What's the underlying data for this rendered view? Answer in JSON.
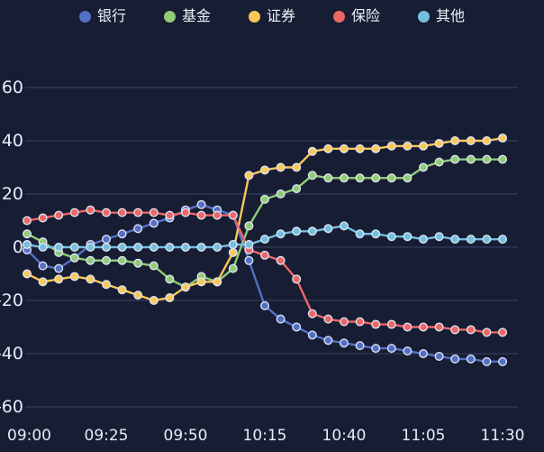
{
  "chart_data": {
    "type": "line",
    "title": "",
    "background": "#171d33",
    "grid": true,
    "grid_color": "#3b4360",
    "axis_text_color": "#e8ecf6",
    "legend_position": "top",
    "marker_stroke": "#dce3f5",
    "ylim": [
      -60,
      60
    ],
    "y_ticks": [
      60,
      40,
      20,
      0,
      -20,
      -40,
      -60
    ],
    "x": [
      "09:00",
      "09:05",
      "09:10",
      "09:15",
      "09:20",
      "09:25",
      "09:30",
      "09:35",
      "09:40",
      "09:45",
      "09:50",
      "09:55",
      "10:00",
      "10:05",
      "10:10",
      "10:15",
      "10:20",
      "10:25",
      "10:30",
      "10:35",
      "10:40",
      "10:45",
      "10:50",
      "10:55",
      "11:00",
      "11:05",
      "11:10",
      "11:15",
      "11:20",
      "11:25",
      "11:30"
    ],
    "x_tick_labels": [
      "09:00",
      "09:25",
      "09:50",
      "10:15",
      "10:40",
      "11:05",
      "11:30"
    ],
    "x_tick_every": 5,
    "series": [
      {
        "id": "bank",
        "name": "银行",
        "color": "#5470c6",
        "values": [
          -1,
          -7,
          -8,
          -4,
          1,
          3,
          5,
          7,
          9,
          11,
          14,
          16,
          14,
          12,
          -5,
          -22,
          -27,
          -30,
          -33,
          -35,
          -36,
          -37,
          -38,
          -38,
          -39,
          -40,
          -41,
          -42,
          -42,
          -43,
          -43
        ]
      },
      {
        "id": "fund",
        "name": "基金",
        "color": "#91cc75",
        "values": [
          5,
          2,
          -2,
          -4,
          -5,
          -5,
          -5,
          -6,
          -7,
          -12,
          -15,
          -11,
          -13,
          -8,
          8,
          18,
          20,
          22,
          27,
          26,
          26,
          26,
          26,
          26,
          26,
          30,
          32,
          33,
          33,
          33,
          33
        ]
      },
      {
        "id": "securities",
        "name": "证券",
        "color": "#fac858",
        "values": [
          -10,
          -13,
          -12,
          -11,
          -12,
          -14,
          -16,
          -18,
          -20,
          -19,
          -15,
          -13,
          -13,
          -2,
          27,
          29,
          30,
          30,
          36,
          37,
          37,
          37,
          37,
          38,
          38,
          38,
          39,
          40,
          40,
          40,
          41
        ]
      },
      {
        "id": "insurance",
        "name": "保险",
        "color": "#ee6666",
        "values": [
          10,
          11,
          12,
          13,
          14,
          13,
          13,
          13,
          13,
          12,
          13,
          12,
          12,
          12,
          -1,
          -3,
          -5,
          -12,
          -25,
          -27,
          -28,
          -28,
          -29,
          -29,
          -30,
          -30,
          -30,
          -31,
          -31,
          -32,
          -32
        ]
      },
      {
        "id": "other",
        "name": "其他",
        "color": "#73c0de",
        "values": [
          1,
          0,
          0,
          0,
          0,
          0,
          0,
          0,
          0,
          0,
          0,
          0,
          0,
          1,
          1,
          3,
          5,
          6,
          6,
          7,
          8,
          5,
          5,
          4,
          4,
          3,
          4,
          3,
          3,
          3,
          3
        ]
      }
    ]
  }
}
